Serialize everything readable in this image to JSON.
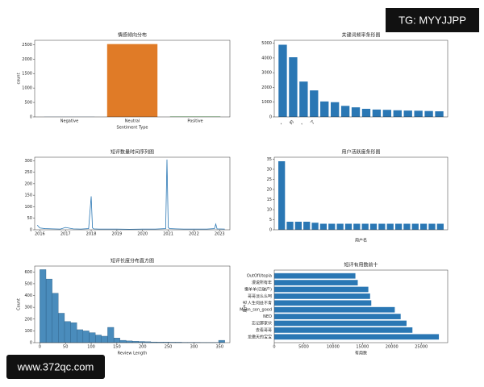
{
  "chart_data": [
    {
      "type": "bar",
      "title": "情感倾向分布",
      "xlabel": "Sentiment Type",
      "ylabel": "count",
      "categories": [
        "Negative",
        "Neutral",
        "Positive"
      ],
      "values": [
        3,
        2520,
        12
      ],
      "colors": [
        "#1f77b4",
        "#e07b27",
        "#2ca02c"
      ],
      "ylim": [
        0,
        2650
      ],
      "yticks": [
        0,
        500,
        1000,
        1500,
        2000,
        2500
      ]
    },
    {
      "type": "bar",
      "title": "关键词频率条形图",
      "color": "#2a77b4",
      "xtick_rotation": 45,
      "categories": [
        "，",
        "的",
        "。",
        "了",
        null,
        null,
        null,
        null,
        null,
        null,
        null,
        null,
        null,
        null,
        null,
        null
      ],
      "values": [
        4900,
        4050,
        2400,
        1800,
        1050,
        1000,
        750,
        650,
        550,
        500,
        480,
        450,
        430,
        420,
        400,
        380
      ],
      "ylim": [
        0,
        5200
      ],
      "yticks": [
        0,
        1000,
        2000,
        3000,
        4000,
        5000
      ]
    },
    {
      "type": "line",
      "title": "短评数量时间序列图",
      "color": "#2a77b4",
      "x": [
        2015.9,
        2016.0,
        2016.2,
        2016.5,
        2016.8,
        2017.0,
        2017.3,
        2017.6,
        2017.9,
        2018.0,
        2018.05,
        2018.1,
        2018.3,
        2018.6,
        2019.0,
        2019.5,
        2020.0,
        2020.5,
        2020.9,
        2020.95,
        2021.0,
        2021.05,
        2021.3,
        2021.6,
        2022.0,
        2022.5,
        2022.8,
        2022.85,
        2022.9,
        2023.2
      ],
      "values": [
        20,
        8,
        5,
        4,
        3,
        10,
        4,
        3,
        5,
        145,
        8,
        4,
        3,
        3,
        3,
        2,
        3,
        3,
        5,
        305,
        10,
        5,
        4,
        3,
        3,
        3,
        5,
        25,
        4,
        3
      ],
      "xlim": [
        2015.8,
        2023.4
      ],
      "xticks": [
        2016,
        2017,
        2018,
        2019,
        2020,
        2021,
        2022,
        2023
      ],
      "ylim": [
        0,
        315
      ],
      "yticks": [
        0,
        50,
        100,
        150,
        200,
        250,
        300
      ]
    },
    {
      "type": "bar",
      "title": "用户活跃度条形图",
      "xlabel": "用户名",
      "color": "#2a77b4",
      "categories": [
        null,
        null,
        null,
        null,
        null,
        null,
        null,
        null,
        null,
        null,
        null,
        null,
        null,
        null,
        null,
        null,
        null,
        null,
        null,
        null
      ],
      "values": [
        34,
        4,
        4,
        4,
        3.5,
        3,
        3,
        3,
        3,
        3,
        3,
        3,
        3,
        3,
        3,
        3,
        3,
        3,
        3,
        3
      ],
      "ylim": [
        0,
        36
      ],
      "yticks": [
        0,
        5,
        10,
        15,
        20,
        25,
        30,
        35
      ]
    },
    {
      "type": "histogram",
      "title": "短评长度分布直方图",
      "xlabel": "Review Length",
      "ylabel": "Count",
      "color": "#4a8cbc",
      "bins": [
        0,
        12,
        24,
        36,
        48,
        60,
        72,
        84,
        96,
        108,
        120,
        132,
        144,
        156,
        168,
        180,
        192,
        204,
        216,
        228,
        240,
        252,
        264,
        276,
        288,
        300,
        312,
        324,
        336,
        348,
        360
      ],
      "values": [
        620,
        540,
        420,
        250,
        180,
        170,
        110,
        100,
        85,
        65,
        55,
        130,
        40,
        20,
        15,
        12,
        10,
        8,
        6,
        5,
        5,
        4,
        4,
        3,
        3,
        3,
        2,
        2,
        2,
        20
      ],
      "xlim": [
        -10,
        370
      ],
      "xticks": [
        0,
        50,
        100,
        150,
        200,
        250,
        300,
        350
      ],
      "ylim": [
        0,
        650
      ],
      "yticks": [
        0,
        100,
        200,
        300,
        400,
        500,
        600
      ]
    },
    {
      "type": "barh",
      "title": "短评有用数前十",
      "xlabel": "有用数",
      "ylabel": "用户名",
      "color": "#2a77b4",
      "categories": [
        "OutOfUtopia",
        "漫说所有年",
        "懒羊羊(已破产)",
        "哥哥淡么么呵",
        "人生何处不青",
        "Moon_son_good",
        "NEO",
        "忘记那家伙",
        "去看哥哥",
        "龙傲天的宝宝"
      ],
      "values": [
        13800,
        14200,
        16000,
        16300,
        16500,
        20500,
        21500,
        22500,
        23500,
        28000
      ],
      "xlim": [
        0,
        29500
      ],
      "xticks": [
        0,
        5000,
        10000,
        15000,
        20000,
        25000
      ]
    }
  ],
  "watermarks": [
    "TG: MYYJJPP",
    "www.372qc.com"
  ]
}
